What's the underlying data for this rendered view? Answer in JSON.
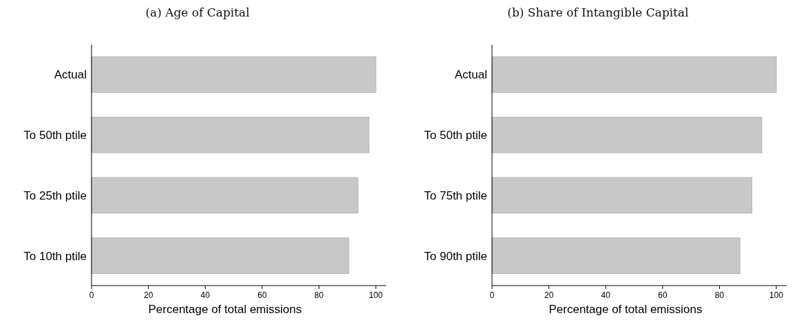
{
  "chart_data": [
    {
      "type": "bar",
      "orientation": "horizontal",
      "title": "(a) Age of Capital",
      "xlabel": "Percentage of total emissions",
      "categories": [
        "Actual",
        "To 50th ptile",
        "To 25th ptile",
        "To 10th ptile"
      ],
      "values": [
        100,
        97.6,
        93.7,
        90.5
      ],
      "color": "#c8c8c8",
      "xlim": [
        0,
        103.6
      ],
      "xticks": [
        0,
        20,
        40,
        60,
        80,
        100
      ],
      "grid": false
    },
    {
      "type": "bar",
      "orientation": "horizontal",
      "title": "(b) Share of Intangible Capital",
      "xlabel": "Percentage of total emissions",
      "categories": [
        "Actual",
        "To 50th ptile",
        "To 75th ptile",
        "To 90th ptile"
      ],
      "values": [
        100,
        94.9,
        91.4,
        87.2
      ],
      "color": "#c8c8c8",
      "xlim": [
        0,
        103.6
      ],
      "xticks": [
        0,
        20,
        40,
        60,
        80,
        100
      ],
      "grid": false
    }
  ]
}
